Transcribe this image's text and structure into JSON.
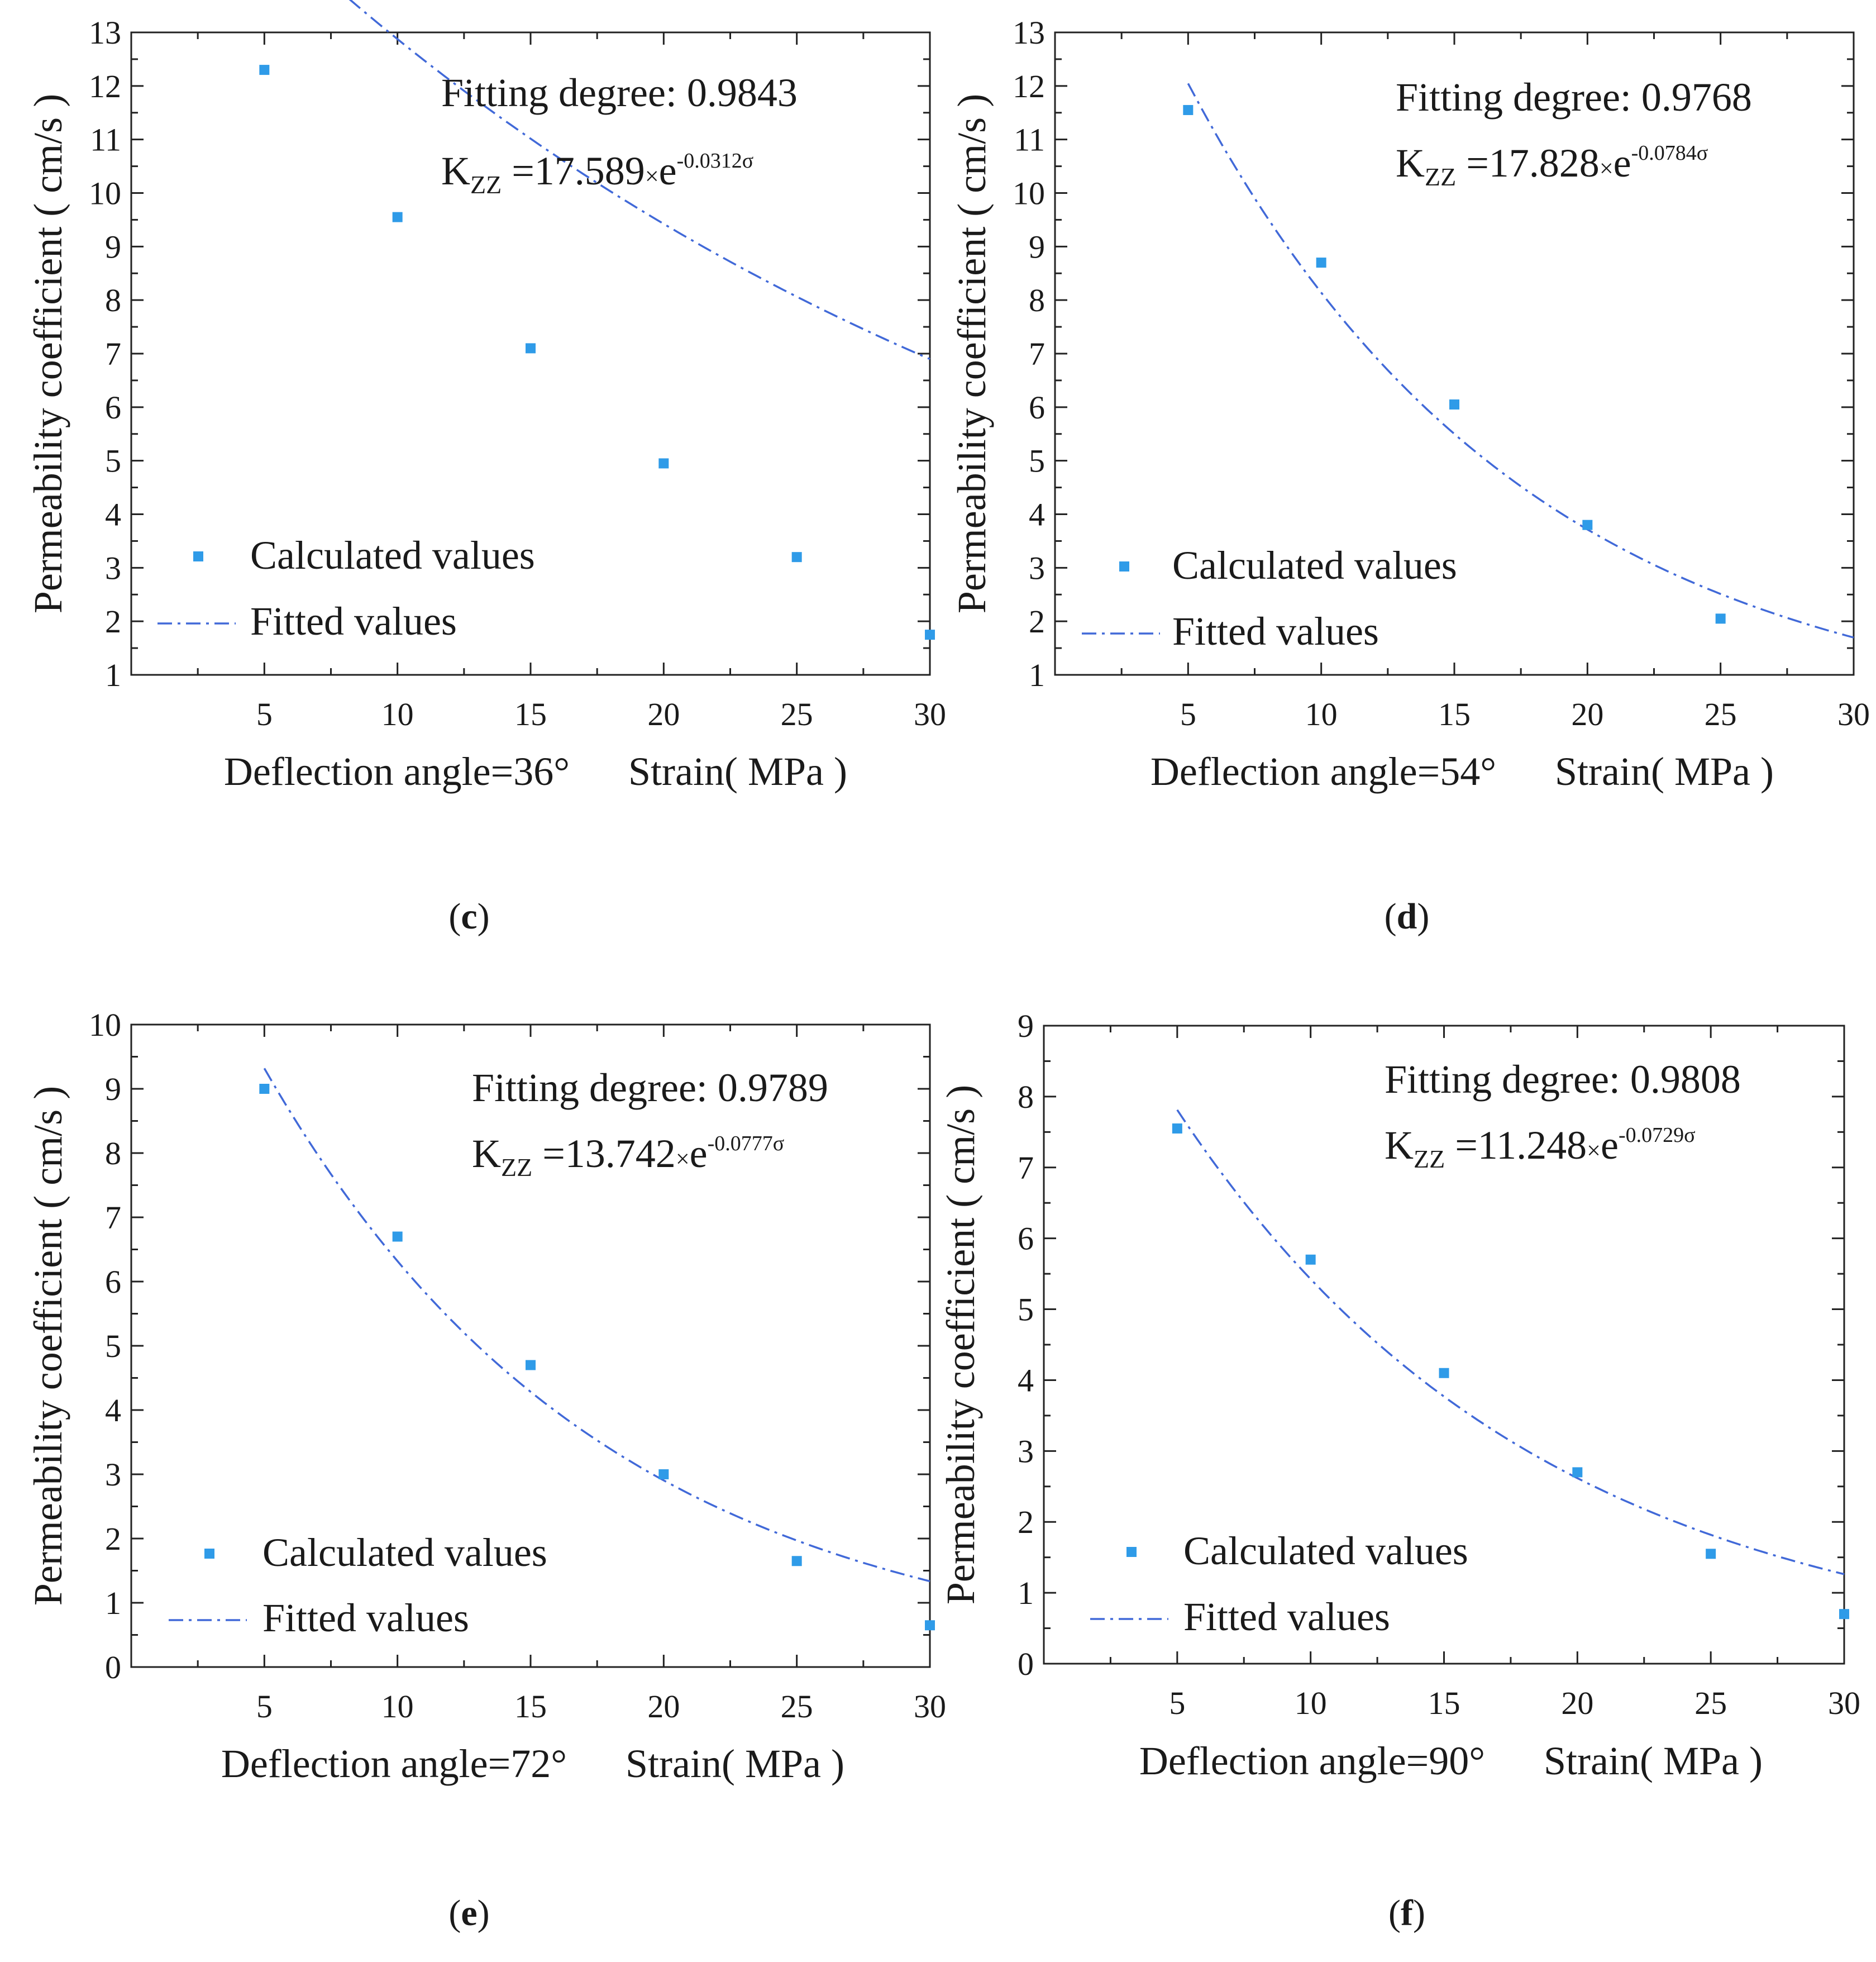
{
  "figure_labels": [
    "(c)",
    "(d)",
    "(e)",
    "(f)"
  ],
  "chart_data": [
    {
      "type": "scatter",
      "panel": "c",
      "subfigure_label": "(c)",
      "caption_letter": "c",
      "xlabel_left": "Deflection angle=36°",
      "xlabel_right": "Strain( MPa )",
      "ylabel": "Permeability coefficient ( cm/s )",
      "xlim": [
        0,
        30
      ],
      "ylim": [
        1,
        13
      ],
      "xticks": [
        5,
        10,
        15,
        20,
        25,
        30
      ],
      "yticks": [
        1,
        2,
        3,
        4,
        5,
        6,
        7,
        8,
        9,
        10,
        11,
        12,
        13
      ],
      "fitting_degree": "Fitting degree: 0.9843",
      "formula": {
        "k": "K",
        "sub": "ZZ",
        "mid": " =17.589",
        "times": "×",
        "base": "e",
        "exp": "-0.0312σ"
      },
      "fit": {
        "a": 17.589,
        "b": 0.0312,
        "x_range": [
          5,
          30
        ]
      },
      "legend": {
        "calculated": "Calculated values",
        "fitted": "Fitted values"
      },
      "series": [
        {
          "name": "Calculated values",
          "x": [
            5,
            10,
            15,
            20,
            25,
            30
          ],
          "values": [
            12.3,
            9.55,
            7.1,
            4.95,
            3.2,
            1.75
          ]
        }
      ],
      "colors": {
        "points": "#2f9be8",
        "fit": "#4169d8"
      }
    },
    {
      "type": "scatter",
      "panel": "d",
      "subfigure_label": "(d)",
      "caption_letter": "d",
      "xlabel_left": "Deflection angle=54°",
      "xlabel_right": "Strain( MPa )",
      "ylabel": "Permeability coefficient ( cm/s )",
      "xlim": [
        0,
        30
      ],
      "ylim": [
        1,
        13
      ],
      "xticks": [
        5,
        10,
        15,
        20,
        25,
        30
      ],
      "yticks": [
        1,
        2,
        3,
        4,
        5,
        6,
        7,
        8,
        9,
        10,
        11,
        12,
        13
      ],
      "fitting_degree": "Fitting degree: 0.9768",
      "formula": {
        "k": "K",
        "sub": "ZZ",
        "mid": " =17.828",
        "times": "×",
        "base": "e",
        "exp": "-0.0784σ"
      },
      "fit": {
        "a": 17.828,
        "b": 0.0784,
        "x_range": [
          5,
          30
        ]
      },
      "legend": {
        "calculated": "Calculated values",
        "fitted": "Fitted values"
      },
      "series": [
        {
          "name": "Calculated values",
          "x": [
            5,
            10,
            15,
            20,
            25
          ],
          "values": [
            11.55,
            8.7,
            6.05,
            3.8,
            2.05
          ]
        }
      ],
      "colors": {
        "points": "#2f9be8",
        "fit": "#4169d8"
      }
    },
    {
      "type": "scatter",
      "panel": "e",
      "subfigure_label": "(e)",
      "caption_letter": "e",
      "xlabel_left": "Deflection angle=72°",
      "xlabel_right": "Strain( MPa )",
      "ylabel": "Permeability coefficient ( cm/s )",
      "xlim": [
        0,
        30
      ],
      "ylim": [
        0,
        10
      ],
      "xticks": [
        5,
        10,
        15,
        20,
        25,
        30
      ],
      "yticks": [
        0,
        1,
        2,
        3,
        4,
        5,
        6,
        7,
        8,
        9,
        10
      ],
      "fitting_degree": "Fitting degree: 0.9789",
      "formula": {
        "k": "K",
        "sub": "ZZ",
        "mid": " =13.742",
        "times": "×",
        "base": "e",
        "exp": "-0.0777σ"
      },
      "fit": {
        "a": 13.742,
        "b": 0.0777,
        "x_range": [
          5,
          30
        ]
      },
      "legend": {
        "calculated": "Calculated values",
        "fitted": "Fitted values"
      },
      "series": [
        {
          "name": "Calculated values",
          "x": [
            5,
            10,
            15,
            20,
            25,
            30
          ],
          "values": [
            9.0,
            6.7,
            4.7,
            3.0,
            1.65,
            0.65
          ]
        }
      ],
      "colors": {
        "points": "#2f9be8",
        "fit": "#4169d8"
      }
    },
    {
      "type": "scatter",
      "panel": "f",
      "subfigure_label": "(f)",
      "caption_letter": "f",
      "xlabel_left": "Deflection angle=90°",
      "xlabel_right": "Strain( MPa )",
      "ylabel": "Permeability coefficient ( cm/s )",
      "xlim": [
        0,
        30
      ],
      "ylim": [
        0,
        9
      ],
      "xticks": [
        5,
        10,
        15,
        20,
        25,
        30
      ],
      "yticks": [
        0,
        1,
        2,
        3,
        4,
        5,
        6,
        7,
        8,
        9
      ],
      "fitting_degree": "Fitting degree: 0.9808",
      "formula": {
        "k": "K",
        "sub": "ZZ",
        "mid": " =11.248",
        "times": "×",
        "base": "e",
        "exp": "-0.0729σ"
      },
      "fit": {
        "a": 11.248,
        "b": 0.0729,
        "x_range": [
          5,
          30
        ]
      },
      "legend": {
        "calculated": "Calculated values",
        "fitted": "Fitted values"
      },
      "series": [
        {
          "name": "Calculated values",
          "x": [
            5,
            10,
            15,
            20,
            25,
            30
          ],
          "values": [
            7.55,
            5.7,
            4.1,
            2.7,
            1.55,
            0.7
          ]
        }
      ],
      "colors": {
        "points": "#2f9be8",
        "fit": "#4169d8"
      }
    }
  ]
}
